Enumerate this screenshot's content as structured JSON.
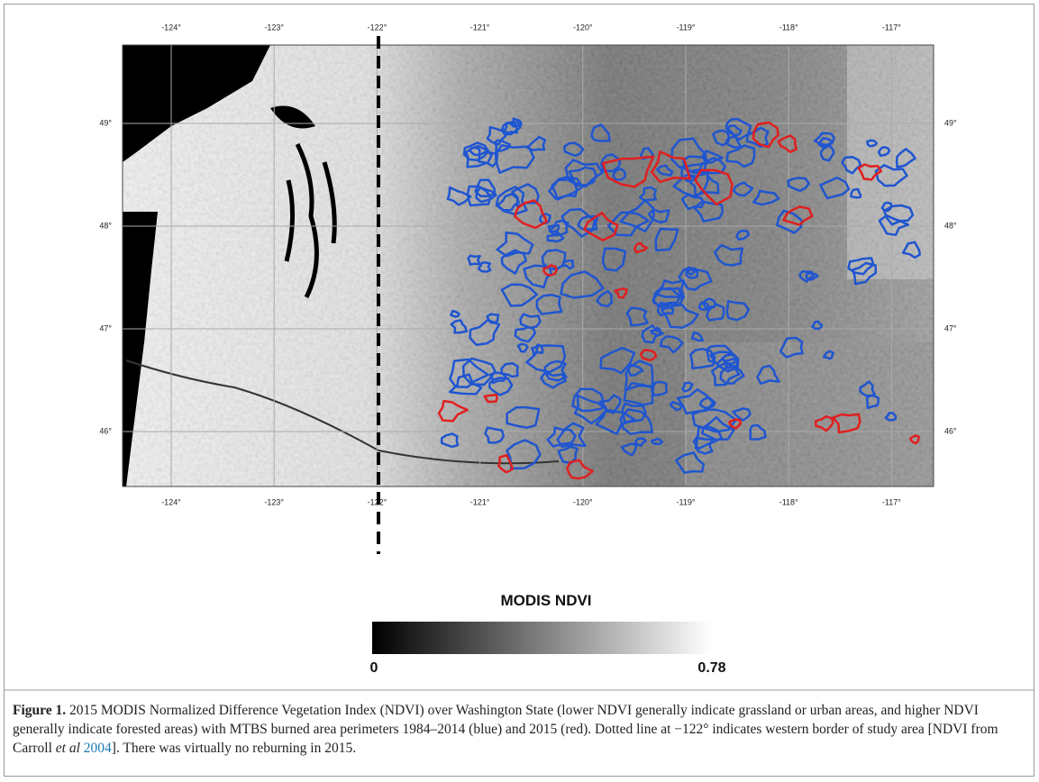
{
  "figure": {
    "map": {
      "lon_labels": [
        "-124°",
        "-123°",
        "-122°",
        "-121°",
        "-120°",
        "-119°",
        "-118°",
        "-117°"
      ],
      "lat_labels": [
        "49°",
        "48°",
        "47°",
        "46°"
      ]
    },
    "colorbar": {
      "title": "MODIS NDVI",
      "min_label": "0",
      "max_label": "0.78"
    },
    "caption": {
      "label": "Figure 1.",
      "text": "2015 MODIS Normalized Difference Vegetation Index (NDVI) over Washington State (lower NDVI generally indicate grassland or urban areas, and higher NDVI generally indicate forested areas) with MTBS burned area perimeters 1984–2014 (blue) and 2015 (red). Dotted line at −122° indicates western border of study area [NDVI from Carroll",
      "italic": "et al",
      "link": "2004",
      "tail": "]. There was virtually no reburning in 2015."
    }
  }
}
